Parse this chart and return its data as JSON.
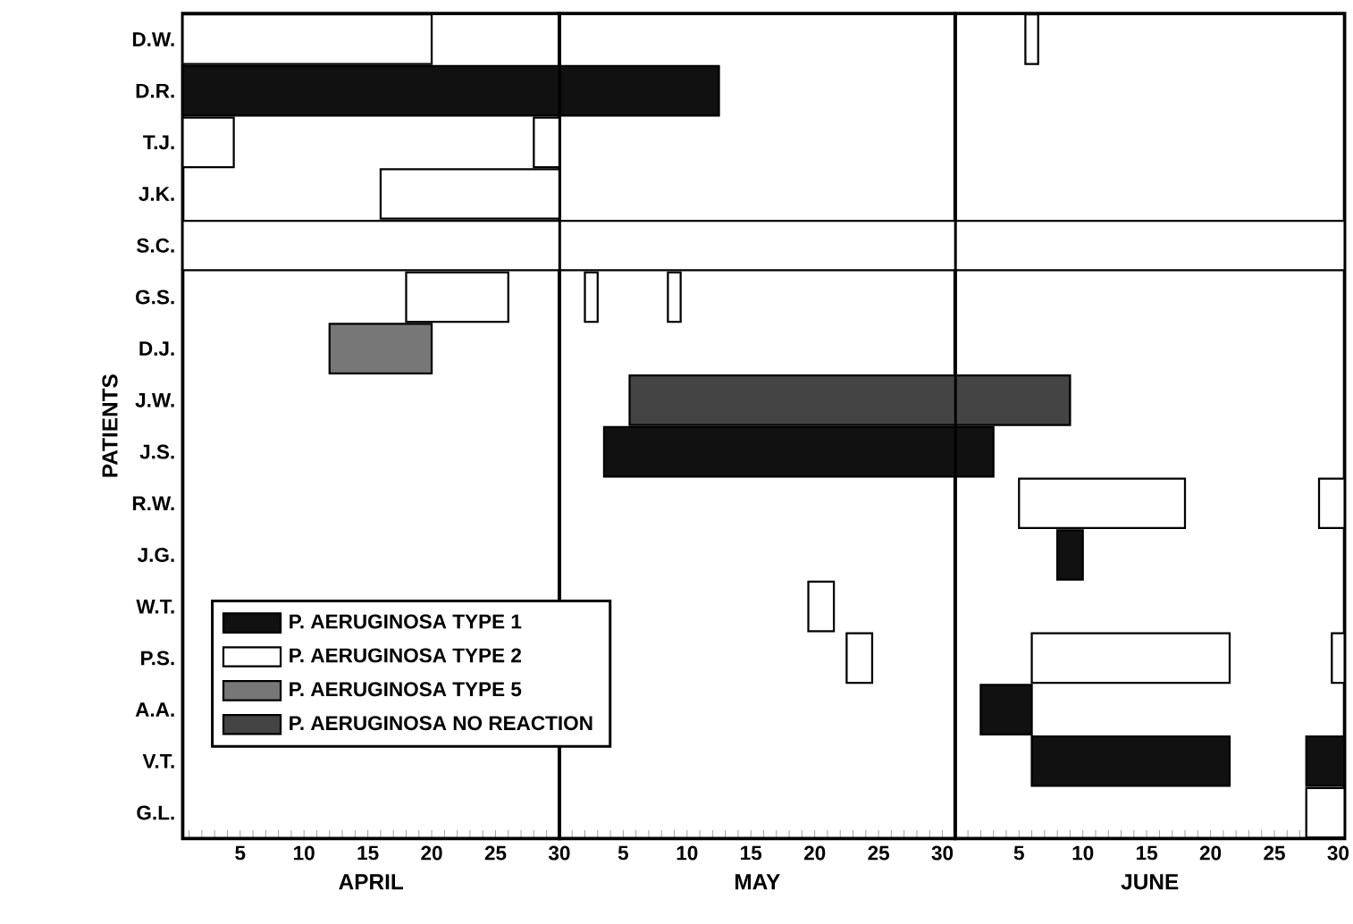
{
  "chart_data": [
    {
      "type": "bar",
      "orientation": "horizontal",
      "ylabel": "PATIENTS",
      "xlabel": "APRIL",
      "legend": "bottom right",
      "categories": [
        "D.W.",
        "D.R.",
        "T.J.",
        "J.K.",
        "S.C.",
        "G.S.",
        "D.J.",
        "J.W.",
        "J.S.",
        "R.W.",
        "J.G.",
        "W.T.",
        "P.S.",
        "A.A.",
        "V.T.",
        "G.L."
      ],
      "xlim": [
        0.5,
        30
      ],
      "xticks": [
        {
          "value": 1,
          "label": null
        },
        {
          "value": 2,
          "label": null
        },
        {
          "value": 3,
          "label": null
        },
        {
          "value": 4,
          "label": null
        },
        5,
        {
          "value": 6,
          "label": null
        },
        {
          "value": 7,
          "label": null
        },
        {
          "value": 8,
          "label": null
        },
        {
          "value": 9,
          "label": null
        },
        10,
        {
          "value": 11,
          "label": null
        },
        {
          "value": 12,
          "label": null
        },
        {
          "value": 13,
          "label": null
        },
        {
          "value": 14,
          "label": null
        },
        15,
        {
          "value": 16,
          "label": null
        },
        {
          "value": 17,
          "label": null
        },
        {
          "value": 18,
          "label": null
        },
        {
          "value": 19,
          "label": null
        },
        20,
        {
          "value": 21,
          "label": null
        },
        {
          "value": 22,
          "label": null
        },
        {
          "value": 23,
          "label": null
        },
        {
          "value": 24,
          "label": null
        },
        25,
        {
          "value": 26,
          "label": null
        },
        {
          "value": 27,
          "label": null
        },
        {
          "value": 28,
          "label": null
        },
        {
          "value": 29,
          "label": null
        },
        30
      ],
      "series": [
        {
          "name": "P. AERUGINOSA TYPE 1",
          "color": "#111111",
          "base": [
            null,
            0.5,
            null,
            null,
            null,
            null,
            null,
            null,
            null,
            null,
            null,
            null,
            null,
            null,
            null,
            null
          ],
          "values": [
            null,
            29.5,
            null,
            null,
            null,
            null,
            null,
            null,
            null,
            null,
            null,
            null,
            null,
            null,
            null,
            null
          ]
        },
        {
          "name": "P. AERUGINOSA TYPE 2",
          "color": "#ffffff",
          "base": [
            0.5,
            null,
            0.5,
            16,
            0.5,
            18,
            null,
            null,
            null,
            null,
            null,
            null,
            null,
            null,
            null,
            null
          ],
          "values": [
            19.5,
            null,
            4,
            14,
            29.5,
            8,
            null,
            null,
            null,
            null,
            null,
            null,
            null,
            null,
            null,
            null
          ]
        },
        {
          "name": "P. AERUGINOSA TYPE 5",
          "color": "#777777",
          "base": [
            null,
            null,
            null,
            null,
            null,
            null,
            12,
            null,
            null,
            null,
            null,
            null,
            null,
            null,
            null,
            null
          ],
          "values": [
            null,
            null,
            null,
            null,
            null,
            null,
            8,
            null,
            null,
            null,
            null,
            null,
            null,
            null,
            null,
            null
          ]
        },
        {
          "name": "P. AERUGINOSA NO REACTION",
          "color": "#444444",
          "values": [
            null,
            null,
            null,
            null,
            null,
            null,
            null,
            null,
            null,
            null,
            null,
            null,
            null,
            null,
            null,
            null
          ]
        },
        {
          "color": "#ffffff",
          "base": [
            null,
            null,
            28,
            null,
            null,
            null,
            null,
            null,
            null,
            null,
            null,
            null,
            null,
            null,
            null,
            null
          ],
          "values": [
            null,
            null,
            2,
            null,
            null,
            null,
            null,
            null,
            null,
            null,
            null,
            null,
            null,
            null,
            null,
            null
          ]
        }
      ]
    },
    {
      "type": "bar",
      "orientation": "horizontal",
      "xlabel": "MAY",
      "tick_labels": "x",
      "categories": [
        "D.W.",
        "D.R.",
        "T.J.",
        "J.K.",
        "S.C.",
        "G.S.",
        "D.J.",
        "J.W.",
        "J.S.",
        "R.W.",
        "J.G.",
        "W.T.",
        "P.S.",
        "A.A.",
        "V.T.",
        "G.L."
      ],
      "xlim": [
        0,
        31
      ],
      "xticks": [
        {
          "value": 1,
          "label": null
        },
        {
          "value": 2,
          "label": null
        },
        {
          "value": 3,
          "label": null
        },
        {
          "value": 4,
          "label": null
        },
        5,
        {
          "value": 6,
          "label": null
        },
        {
          "value": 7,
          "label": null
        },
        {
          "value": 8,
          "label": null
        },
        {
          "value": 9,
          "label": null
        },
        10,
        {
          "value": 11,
          "label": null
        },
        {
          "value": 12,
          "label": null
        },
        {
          "value": 13,
          "label": null
        },
        {
          "value": 14,
          "label": null
        },
        15,
        {
          "value": 16,
          "label": null
        },
        {
          "value": 17,
          "label": null
        },
        {
          "value": 18,
          "label": null
        },
        {
          "value": 19,
          "label": null
        },
        20,
        {
          "value": 21,
          "label": null
        },
        {
          "value": 22,
          "label": null
        },
        {
          "value": 23,
          "label": null
        },
        {
          "value": 24,
          "label": null
        },
        25,
        {
          "value": 26,
          "label": null
        },
        {
          "value": 27,
          "label": null
        },
        {
          "value": 28,
          "label": null
        },
        {
          "value": 29,
          "label": null
        },
        30,
        {
          "value": 31,
          "label": null
        }
      ],
      "series": [
        {
          "color": "#111111",
          "base": [
            null,
            0,
            null,
            null,
            null,
            null,
            null,
            null,
            3.5,
            null,
            null,
            null,
            null,
            null,
            null,
            null
          ],
          "values": [
            null,
            12.5,
            null,
            null,
            null,
            null,
            null,
            null,
            27.5,
            null,
            null,
            null,
            null,
            null,
            null,
            null
          ]
        },
        {
          "color": "#ffffff",
          "base": [
            null,
            null,
            null,
            null,
            0,
            2,
            null,
            null,
            null,
            null,
            null,
            19.5,
            22.5,
            null,
            null,
            null
          ],
          "values": [
            null,
            null,
            null,
            null,
            31,
            1,
            null,
            null,
            null,
            null,
            null,
            2,
            2,
            null,
            null,
            null
          ]
        },
        {
          "color": "#444444",
          "base": [
            null,
            null,
            null,
            null,
            null,
            null,
            null,
            5.5,
            null,
            null,
            null,
            null,
            null,
            null,
            null,
            null
          ],
          "values": [
            null,
            null,
            null,
            null,
            null,
            null,
            null,
            25.5,
            null,
            null,
            null,
            null,
            null,
            null,
            null,
            null
          ]
        },
        {
          "color": "#ffffff",
          "base": [
            null,
            null,
            null,
            null,
            null,
            8.5,
            null,
            null,
            null,
            null,
            null,
            null,
            null,
            null,
            null,
            null
          ],
          "values": [
            null,
            null,
            null,
            null,
            null,
            1,
            null,
            null,
            null,
            null,
            null,
            null,
            null,
            null,
            null,
            null
          ]
        }
      ]
    },
    {
      "type": "bar",
      "orientation": "horizontal",
      "xlabel": "JUNE",
      "tick_labels": "x",
      "categories": [
        "D.W.",
        "D.R.",
        "T.J.",
        "J.K.",
        "S.C.",
        "G.S.",
        "D.J.",
        "J.W.",
        "J.S.",
        "R.W.",
        "J.G.",
        "W.T.",
        "P.S.",
        "A.A.",
        "V.T.",
        "G.L."
      ],
      "xlim": [
        0,
        30.5
      ],
      "xticks": [
        {
          "value": 1,
          "label": null
        },
        {
          "value": 2,
          "label": null
        },
        {
          "value": 3,
          "label": null
        },
        {
          "value": 4,
          "label": null
        },
        5,
        {
          "value": 6,
          "label": null
        },
        {
          "value": 7,
          "label": null
        },
        {
          "value": 8,
          "label": null
        },
        {
          "value": 9,
          "label": null
        },
        10,
        {
          "value": 11,
          "label": null
        },
        {
          "value": 12,
          "label": null
        },
        {
          "value": 13,
          "label": null
        },
        {
          "value": 14,
          "label": null
        },
        15,
        {
          "value": 16,
          "label": null
        },
        {
          "value": 17,
          "label": null
        },
        {
          "value": 18,
          "label": null
        },
        {
          "value": 19,
          "label": null
        },
        20,
        {
          "value": 21,
          "label": null
        },
        {
          "value": 22,
          "label": null
        },
        {
          "value": 23,
          "label": null
        },
        {
          "value": 24,
          "label": null
        },
        25,
        {
          "value": 26,
          "label": null
        },
        {
          "value": 27,
          "label": null
        },
        {
          "value": 28,
          "label": null
        },
        {
          "value": 29,
          "label": null
        },
        30
      ],
      "series": [
        {
          "color": "#111111",
          "base": [
            null,
            null,
            null,
            null,
            null,
            null,
            null,
            null,
            0,
            null,
            8,
            null,
            null,
            2,
            6,
            null
          ],
          "values": [
            null,
            null,
            null,
            null,
            null,
            null,
            null,
            null,
            3,
            null,
            2,
            null,
            null,
            4,
            15.5,
            null
          ]
        },
        {
          "color": "#ffffff",
          "base": [
            5.5,
            null,
            null,
            null,
            0,
            null,
            null,
            null,
            null,
            5,
            null,
            null,
            6,
            null,
            null,
            27.5
          ],
          "values": [
            1,
            null,
            null,
            null,
            30.5,
            null,
            null,
            null,
            null,
            13,
            null,
            null,
            15.5,
            null,
            null,
            3
          ]
        },
        {
          "color": "#444444",
          "base": [
            null,
            null,
            null,
            null,
            null,
            null,
            null,
            0,
            null,
            null,
            null,
            null,
            null,
            null,
            null,
            null
          ],
          "values": [
            null,
            null,
            null,
            null,
            null,
            null,
            null,
            9,
            null,
            null,
            null,
            null,
            null,
            null,
            null,
            null
          ]
        },
        {
          "color": "#ffffff",
          "base": [
            null,
            null,
            null,
            null,
            null,
            null,
            null,
            null,
            null,
            28.5,
            null,
            null,
            29.5,
            null,
            null,
            null
          ],
          "values": [
            null,
            null,
            null,
            null,
            null,
            null,
            null,
            null,
            null,
            2,
            null,
            null,
            1,
            null,
            null,
            null
          ]
        },
        {
          "color": "#111111",
          "base": [
            null,
            null,
            null,
            null,
            null,
            null,
            null,
            null,
            null,
            null,
            null,
            null,
            null,
            null,
            27.5,
            null
          ],
          "values": [
            null,
            null,
            null,
            null,
            null,
            null,
            null,
            null,
            null,
            null,
            null,
            null,
            null,
            null,
            3,
            null
          ]
        }
      ]
    }
  ]
}
